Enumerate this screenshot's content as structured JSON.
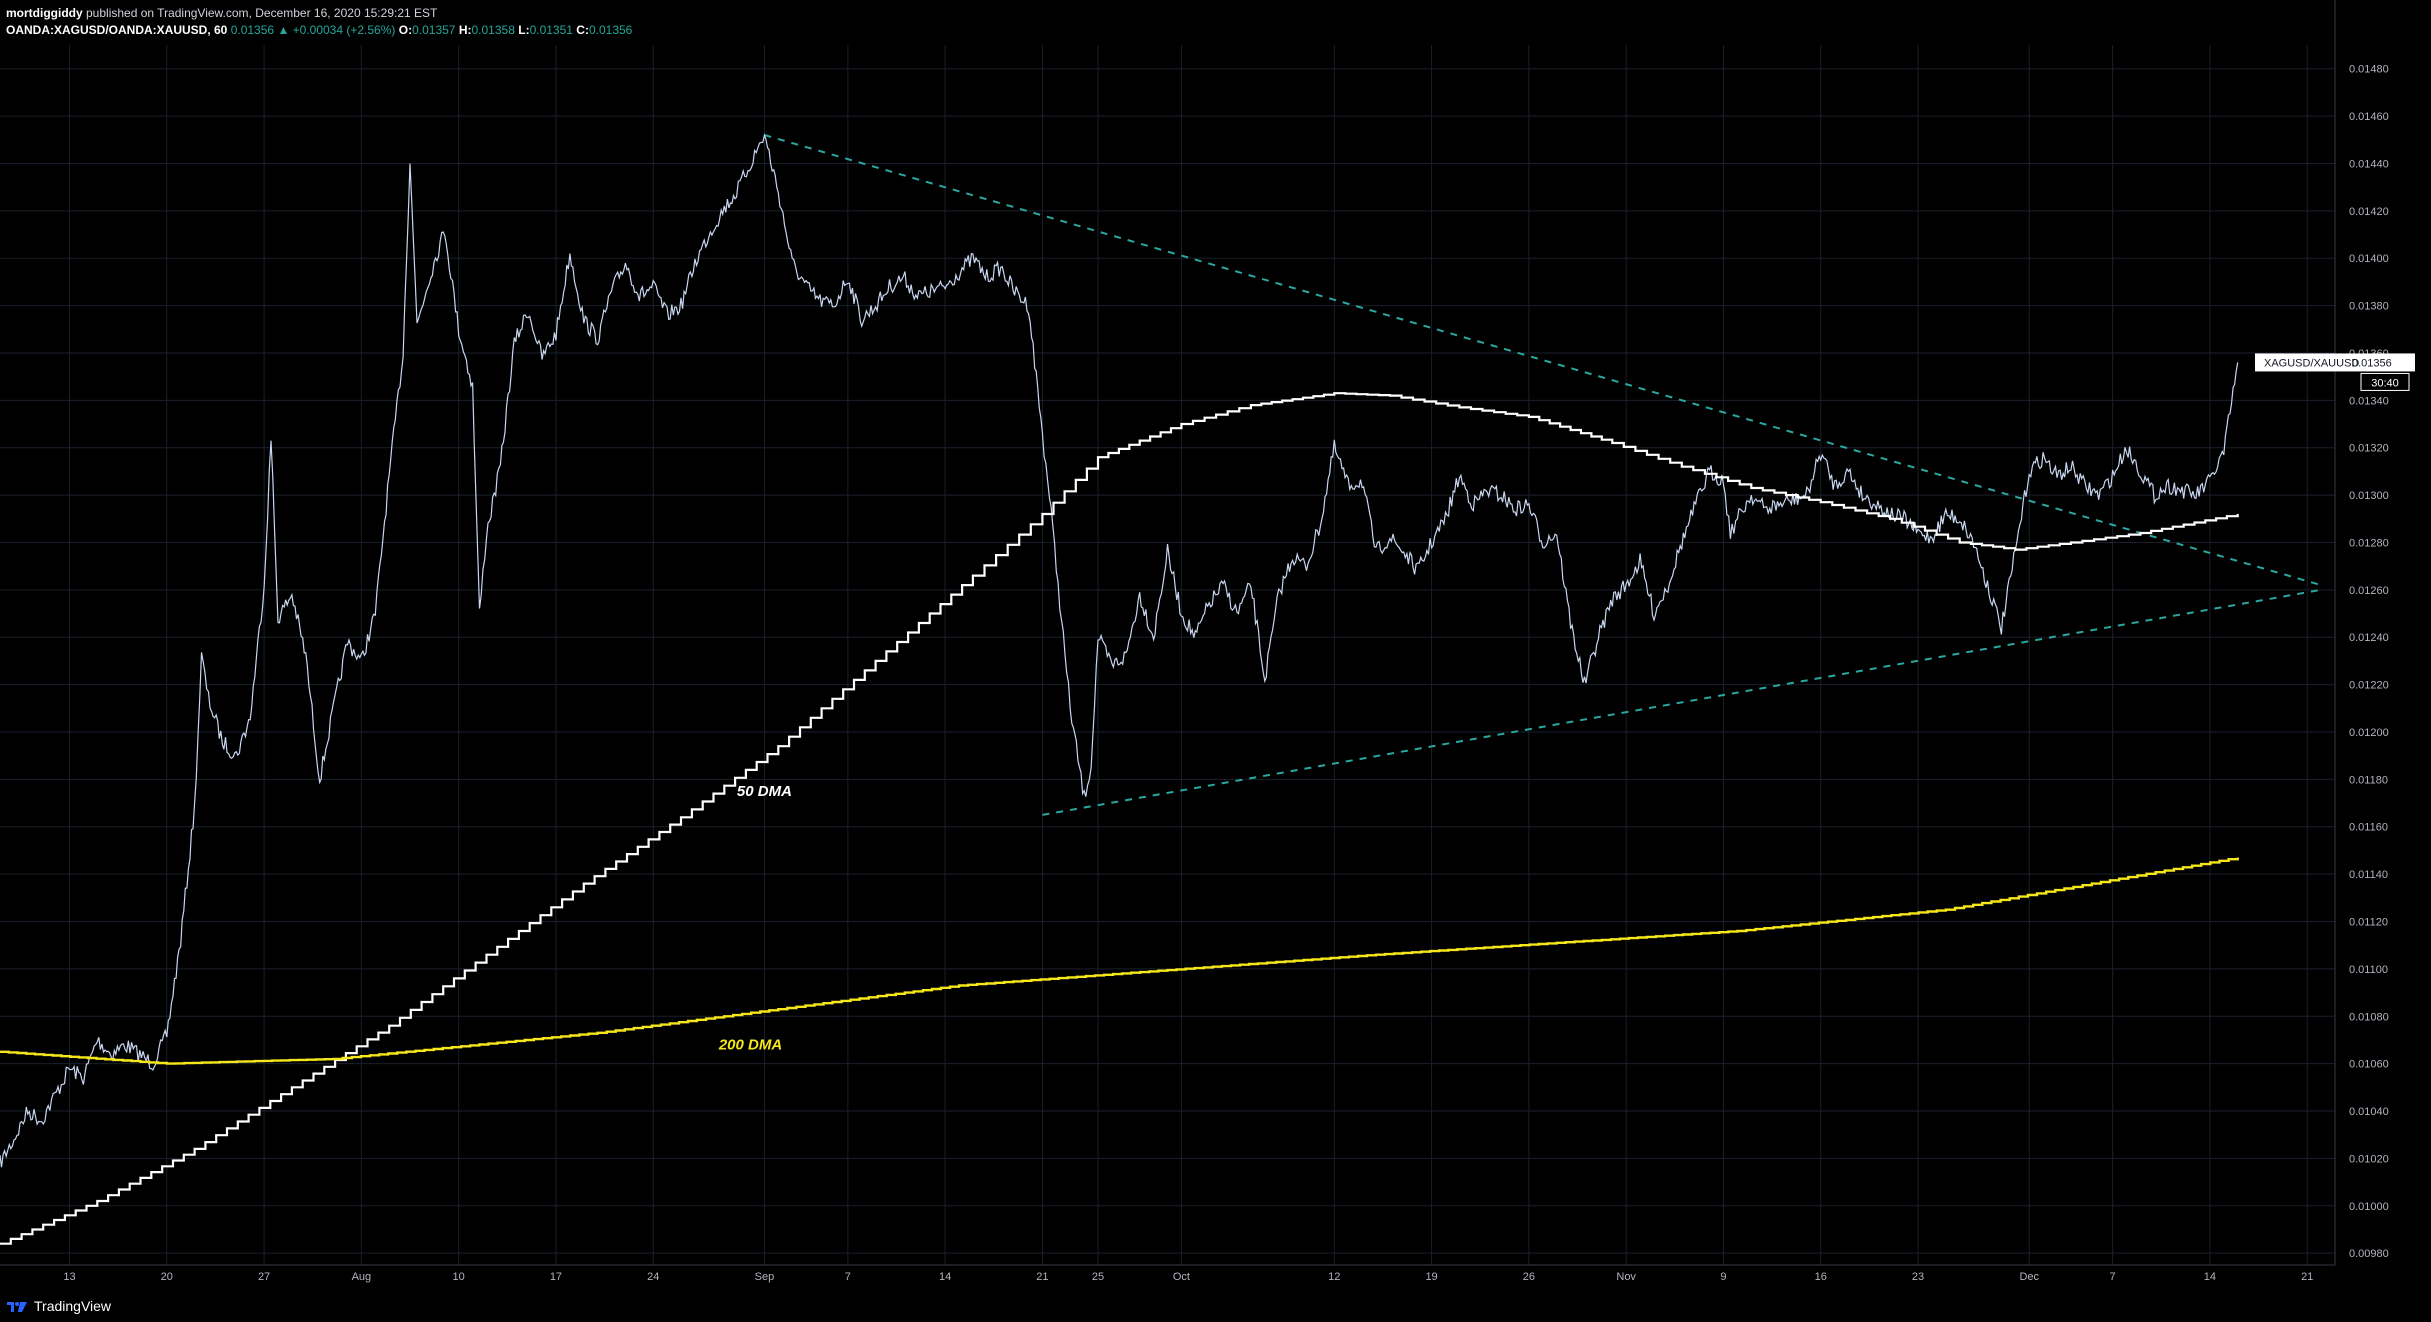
{
  "header": {
    "user": "mortdiggiddy",
    "published": " published on TradingView.com, December 16, 2020 15:29:21 EST",
    "symbol": "OANDA:XAGUSD/OANDA:XAUUSD, 60",
    "last": "0.01356",
    "change": "▲ +0.00034 (+2.56%)",
    "o_label": "O:",
    "o_val": "0.01357",
    "h_label": "H:",
    "h_val": "0.01358",
    "l_label": "L:",
    "l_val": "0.01351",
    "c_label": "C:",
    "c_val": "0.01356"
  },
  "footer": {
    "brand": "TradingView"
  },
  "colors": {
    "background": "#000000",
    "price": "#c8d6f0",
    "ma50": "#ffffff",
    "ma200": "#f5e71a",
    "trendline": "#2aa7a0",
    "grid": "#1a1f2b",
    "axis_text": "#b2b5be"
  },
  "chart_data": {
    "type": "line",
    "symbol": "XAGUSD/XAUUSD",
    "timeframe": "60",
    "ylim": [
      0.00975,
      0.0149
    ],
    "xlim": [
      "2020-07-08",
      "2020-12-23"
    ],
    "y_ticks": [
      "0.00980",
      "0.01000",
      "0.01020",
      "0.01040",
      "0.01060",
      "0.01080",
      "0.01100",
      "0.01120",
      "0.01140",
      "0.01160",
      "0.01180",
      "0.01200",
      "0.01220",
      "0.01240",
      "0.01260",
      "0.01280",
      "0.01300",
      "0.01320",
      "0.01340",
      "0.01360",
      "0.01380",
      "0.01400",
      "0.01420",
      "0.01440",
      "0.01460",
      "0.01480"
    ],
    "x_ticks": [
      {
        "date": "2020-07-13",
        "label": "13"
      },
      {
        "date": "2020-07-20",
        "label": "20"
      },
      {
        "date": "2020-07-27",
        "label": "27"
      },
      {
        "date": "2020-08-03",
        "label": "Aug"
      },
      {
        "date": "2020-08-10",
        "label": "10"
      },
      {
        "date": "2020-08-17",
        "label": "17"
      },
      {
        "date": "2020-08-24",
        "label": "24"
      },
      {
        "date": "2020-09-01",
        "label": "Sep"
      },
      {
        "date": "2020-09-07",
        "label": "7"
      },
      {
        "date": "2020-09-14",
        "label": "14"
      },
      {
        "date": "2020-09-21",
        "label": "21"
      },
      {
        "date": "2020-09-25",
        "label": "25"
      },
      {
        "date": "2020-10-01",
        "label": "Oct"
      },
      {
        "date": "2020-10-12",
        "label": "12"
      },
      {
        "date": "2020-10-19",
        "label": "19"
      },
      {
        "date": "2020-10-26",
        "label": "26"
      },
      {
        "date": "2020-11-02",
        "label": "Nov"
      },
      {
        "date": "2020-11-09",
        "label": "9"
      },
      {
        "date": "2020-11-16",
        "label": "16"
      },
      {
        "date": "2020-11-23",
        "label": "23"
      },
      {
        "date": "2020-12-01",
        "label": "Dec"
      },
      {
        "date": "2020-12-07",
        "label": "7"
      },
      {
        "date": "2020-12-14",
        "label": "14"
      },
      {
        "date": "2020-12-21",
        "label": "21"
      }
    ],
    "series": [
      {
        "name": "XAGUSD/XAUUSD",
        "style": "price",
        "points": [
          [
            "2020-07-08",
            0.01018
          ],
          [
            "2020-07-09",
            0.01028
          ],
          [
            "2020-07-10",
            0.0104
          ],
          [
            "2020-07-11",
            0.01036
          ],
          [
            "2020-07-13",
            0.01058
          ],
          [
            "2020-07-14",
            0.01054
          ],
          [
            "2020-07-15",
            0.0107
          ],
          [
            "2020-07-16",
            0.01064
          ],
          [
            "2020-07-17",
            0.01068
          ],
          [
            "2020-07-19",
            0.0106
          ],
          [
            "2020-07-20",
            0.01072
          ],
          [
            "2020-07-21",
            0.01112
          ],
          [
            "2020-07-22",
            0.01168
          ],
          [
            "2020-07-22T12",
            0.01232
          ],
          [
            "2020-07-23",
            0.01214
          ],
          [
            "2020-07-24",
            0.01196
          ],
          [
            "2020-07-25",
            0.0119
          ],
          [
            "2020-07-26",
            0.01206
          ],
          [
            "2020-07-27",
            0.01262
          ],
          [
            "2020-07-27T12",
            0.01324
          ],
          [
            "2020-07-28",
            0.01248
          ],
          [
            "2020-07-29",
            0.01258
          ],
          [
            "2020-07-30",
            0.01232
          ],
          [
            "2020-07-31",
            0.0118
          ],
          [
            "2020-08-01",
            0.0121
          ],
          [
            "2020-08-02",
            0.01238
          ],
          [
            "2020-08-03",
            0.0123
          ],
          [
            "2020-08-04",
            0.0125
          ],
          [
            "2020-08-05",
            0.01308
          ],
          [
            "2020-08-06",
            0.0136
          ],
          [
            "2020-08-06T12",
            0.01442
          ],
          [
            "2020-08-07",
            0.01372
          ],
          [
            "2020-08-08",
            0.01394
          ],
          [
            "2020-08-09",
            0.01412
          ],
          [
            "2020-08-10",
            0.0137
          ],
          [
            "2020-08-11",
            0.01346
          ],
          [
            "2020-08-11T12",
            0.0125
          ],
          [
            "2020-08-12",
            0.01284
          ],
          [
            "2020-08-13",
            0.01312
          ],
          [
            "2020-08-14",
            0.01364
          ],
          [
            "2020-08-15",
            0.01378
          ],
          [
            "2020-08-16",
            0.01358
          ],
          [
            "2020-08-17",
            0.01368
          ],
          [
            "2020-08-18",
            0.01402
          ],
          [
            "2020-08-19",
            0.01374
          ],
          [
            "2020-08-20",
            0.01366
          ],
          [
            "2020-08-21",
            0.01386
          ],
          [
            "2020-08-22",
            0.01398
          ],
          [
            "2020-08-23",
            0.01384
          ],
          [
            "2020-08-24",
            0.01388
          ],
          [
            "2020-08-25",
            0.01376
          ],
          [
            "2020-08-26",
            0.0138
          ],
          [
            "2020-08-27",
            0.01398
          ],
          [
            "2020-08-28",
            0.0141
          ],
          [
            "2020-08-29",
            0.0142
          ],
          [
            "2020-08-30",
            0.01428
          ],
          [
            "2020-09-01",
            0.01452
          ],
          [
            "2020-09-02",
            0.01428
          ],
          [
            "2020-09-03",
            0.01398
          ],
          [
            "2020-09-04",
            0.01388
          ],
          [
            "2020-09-05",
            0.01382
          ],
          [
            "2020-09-06",
            0.0138
          ],
          [
            "2020-09-07",
            0.01392
          ],
          [
            "2020-09-08",
            0.01374
          ],
          [
            "2020-09-09",
            0.0138
          ],
          [
            "2020-09-10",
            0.01388
          ],
          [
            "2020-09-11",
            0.01392
          ],
          [
            "2020-09-12",
            0.01384
          ],
          [
            "2020-09-13",
            0.01386
          ],
          [
            "2020-09-14",
            0.01388
          ],
          [
            "2020-09-15",
            0.01394
          ],
          [
            "2020-09-16",
            0.014
          ],
          [
            "2020-09-17",
            0.01392
          ],
          [
            "2020-09-18",
            0.01396
          ],
          [
            "2020-09-19",
            0.01386
          ],
          [
            "2020-09-20",
            0.0138
          ],
          [
            "2020-09-21",
            0.01326
          ],
          [
            "2020-09-21T12",
            0.013
          ],
          [
            "2020-09-22",
            0.0127
          ],
          [
            "2020-09-22T12",
            0.0124
          ],
          [
            "2020-09-23",
            0.0121
          ],
          [
            "2020-09-24",
            0.01172
          ],
          [
            "2020-09-24T12",
            0.01186
          ],
          [
            "2020-09-25",
            0.0124
          ],
          [
            "2020-09-26",
            0.01228
          ],
          [
            "2020-09-27",
            0.01232
          ],
          [
            "2020-09-28",
            0.01258
          ],
          [
            "2020-09-29",
            0.0124
          ],
          [
            "2020-09-30",
            0.01276
          ],
          [
            "2020-10-01",
            0.0125
          ],
          [
            "2020-10-02",
            0.0124
          ],
          [
            "2020-10-03",
            0.01254
          ],
          [
            "2020-10-04",
            0.01262
          ],
          [
            "2020-10-05",
            0.0125
          ],
          [
            "2020-10-06",
            0.01262
          ],
          [
            "2020-10-07",
            0.01222
          ],
          [
            "2020-10-08",
            0.01258
          ],
          [
            "2020-10-09",
            0.01274
          ],
          [
            "2020-10-10",
            0.0127
          ],
          [
            "2020-10-11",
            0.01288
          ],
          [
            "2020-10-12",
            0.0132
          ],
          [
            "2020-10-13",
            0.01304
          ],
          [
            "2020-10-14",
            0.01306
          ],
          [
            "2020-10-15",
            0.01276
          ],
          [
            "2020-10-16",
            0.01282
          ],
          [
            "2020-10-17",
            0.01276
          ],
          [
            "2020-10-18",
            0.01268
          ],
          [
            "2020-10-19",
            0.0128
          ],
          [
            "2020-10-20",
            0.0129
          ],
          [
            "2020-10-21",
            0.01308
          ],
          [
            "2020-10-22",
            0.01296
          ],
          [
            "2020-10-23",
            0.01302
          ],
          [
            "2020-10-24",
            0.013
          ],
          [
            "2020-10-25",
            0.01294
          ],
          [
            "2020-10-26",
            0.01296
          ],
          [
            "2020-10-27",
            0.0128
          ],
          [
            "2020-10-28",
            0.01284
          ],
          [
            "2020-10-29",
            0.01246
          ],
          [
            "2020-10-30",
            0.0122
          ],
          [
            "2020-10-31",
            0.0124
          ],
          [
            "2020-11-01",
            0.01256
          ],
          [
            "2020-11-02",
            0.01262
          ],
          [
            "2020-11-03",
            0.01272
          ],
          [
            "2020-11-04",
            0.0125
          ],
          [
            "2020-11-05",
            0.01262
          ],
          [
            "2020-11-06",
            0.0128
          ],
          [
            "2020-11-07",
            0.01296
          ],
          [
            "2020-11-08",
            0.0131
          ],
          [
            "2020-11-09",
            0.01306
          ],
          [
            "2020-11-09T12",
            0.01284
          ],
          [
            "2020-11-10",
            0.0129
          ],
          [
            "2020-11-11",
            0.013
          ],
          [
            "2020-11-12",
            0.01294
          ],
          [
            "2020-11-13",
            0.01296
          ],
          [
            "2020-11-14",
            0.01298
          ],
          [
            "2020-11-15",
            0.013
          ],
          [
            "2020-11-16",
            0.01318
          ],
          [
            "2020-11-17",
            0.01304
          ],
          [
            "2020-11-18",
            0.0131
          ],
          [
            "2020-11-19",
            0.013
          ],
          [
            "2020-11-20",
            0.01296
          ],
          [
            "2020-11-21",
            0.01292
          ],
          [
            "2020-11-22",
            0.0129
          ],
          [
            "2020-11-23",
            0.01284
          ],
          [
            "2020-11-24",
            0.01282
          ],
          [
            "2020-11-25",
            0.01292
          ],
          [
            "2020-11-26",
            0.0129
          ],
          [
            "2020-11-27",
            0.0128
          ],
          [
            "2020-11-28",
            0.01262
          ],
          [
            "2020-11-29",
            0.01244
          ],
          [
            "2020-11-30",
            0.01276
          ],
          [
            "2020-12-01",
            0.0131
          ],
          [
            "2020-12-02",
            0.01316
          ],
          [
            "2020-12-03",
            0.01308
          ],
          [
            "2020-12-04",
            0.01312
          ],
          [
            "2020-12-05",
            0.01304
          ],
          [
            "2020-12-06",
            0.013
          ],
          [
            "2020-12-07",
            0.01308
          ],
          [
            "2020-12-08",
            0.0132
          ],
          [
            "2020-12-09",
            0.0131
          ],
          [
            "2020-12-10",
            0.013
          ],
          [
            "2020-12-11",
            0.01304
          ],
          [
            "2020-12-12",
            0.01302
          ],
          [
            "2020-12-13",
            0.013
          ],
          [
            "2020-12-14",
            0.01306
          ],
          [
            "2020-12-15",
            0.01318
          ],
          [
            "2020-12-16",
            0.01356
          ]
        ]
      },
      {
        "name": "50 DMA",
        "style": "ma50",
        "points": [
          [
            "2020-07-08",
            0.00984
          ],
          [
            "2020-07-15",
            0.01002
          ],
          [
            "2020-07-22",
            0.01024
          ],
          [
            "2020-07-29",
            0.0105
          ],
          [
            "2020-08-05",
            0.01076
          ],
          [
            "2020-08-12",
            0.01106
          ],
          [
            "2020-08-19",
            0.01136
          ],
          [
            "2020-08-26",
            0.01164
          ],
          [
            "2020-09-02",
            0.01194
          ],
          [
            "2020-09-09",
            0.0123
          ],
          [
            "2020-09-16",
            0.01266
          ],
          [
            "2020-09-21",
            0.01292
          ],
          [
            "2020-09-25",
            0.01316
          ],
          [
            "2020-10-01",
            0.0133
          ],
          [
            "2020-10-06",
            0.01338
          ],
          [
            "2020-10-12",
            0.01343
          ],
          [
            "2020-10-16",
            0.01342
          ],
          [
            "2020-10-21",
            0.01337
          ],
          [
            "2020-10-26",
            0.01333
          ],
          [
            "2020-11-01",
            0.01322
          ],
          [
            "2020-11-06",
            0.01312
          ],
          [
            "2020-11-11",
            0.01303
          ],
          [
            "2020-11-16",
            0.01297
          ],
          [
            "2020-11-21",
            0.0129
          ],
          [
            "2020-11-26",
            0.0128
          ],
          [
            "2020-11-30",
            0.01277
          ],
          [
            "2020-12-04",
            0.0128
          ],
          [
            "2020-12-09",
            0.01284
          ],
          [
            "2020-12-16",
            0.01292
          ]
        ]
      },
      {
        "name": "200 DMA",
        "style": "ma200",
        "points": [
          [
            "2020-07-08",
            0.01065
          ],
          [
            "2020-07-20",
            0.0106
          ],
          [
            "2020-08-01",
            0.01062
          ],
          [
            "2020-08-20",
            0.01073
          ],
          [
            "2020-09-15",
            0.01093
          ],
          [
            "2020-10-15",
            0.01106
          ],
          [
            "2020-11-10",
            0.01116
          ],
          [
            "2020-11-25",
            0.01125
          ],
          [
            "2020-12-16",
            0.01147
          ]
        ]
      }
    ],
    "trendlines": [
      {
        "from": [
          "2020-09-01",
          0.01452
        ],
        "to": [
          "2020-12-22",
          0.01262
        ],
        "style": "dashed"
      },
      {
        "from": [
          "2020-09-21",
          0.01165
        ],
        "to": [
          "2020-12-22",
          0.0126
        ],
        "style": "dashed"
      }
    ],
    "annotations": [
      {
        "text": "50 DMA",
        "at": [
          "2020-09-01",
          0.01173
        ],
        "color": "#ffffff"
      },
      {
        "text": "200 DMA",
        "at": [
          "2020-08-31",
          0.01066
        ],
        "color": "#f5e71a"
      }
    ],
    "price_label": {
      "symbol": "XAGUSD/XAUUSD",
      "value": "0.01356",
      "countdown": "30:40"
    }
  }
}
